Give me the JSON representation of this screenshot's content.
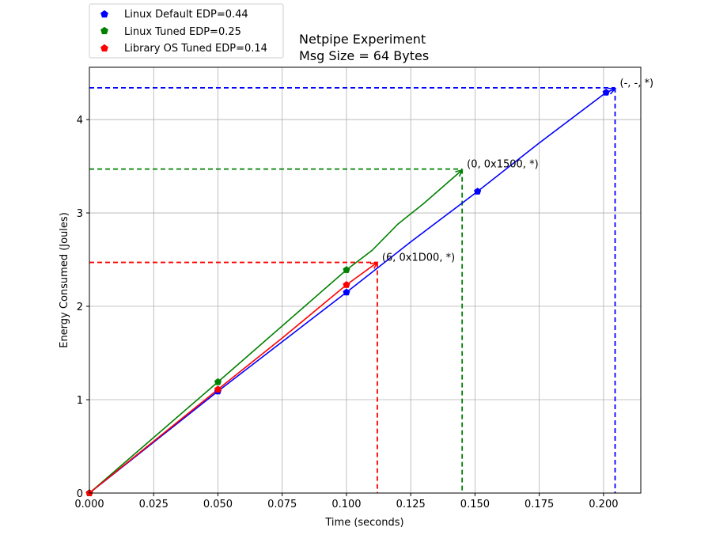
{
  "chart_data": {
    "type": "line",
    "title_lines": [
      "Netpipe Experiment",
      "Msg Size = 64 Bytes"
    ],
    "xlabel": "Time (seconds)",
    "ylabel": "Energy Consumed (Joules)",
    "xlim": [
      0.0,
      0.2145
    ],
    "ylim": [
      0,
      4.56
    ],
    "xticks": [
      0.0,
      0.025,
      0.05,
      0.075,
      0.1,
      0.125,
      0.15,
      0.175,
      0.2
    ],
    "xtick_labels": [
      "0.000",
      "0.025",
      "0.050",
      "0.075",
      "0.100",
      "0.125",
      "0.150",
      "0.175",
      "0.200"
    ],
    "yticks": [
      0,
      1,
      2,
      3,
      4
    ],
    "ytick_labels": [
      "0",
      "1",
      "2",
      "3",
      "4"
    ],
    "grid": true,
    "legend_position": "top-left, above the plot",
    "series": [
      {
        "name": "Linux Default EDP=0.44",
        "color": "#0000ff",
        "marker": "pentagon",
        "line": [
          [
            0.0,
            0.0
          ],
          [
            0.05,
            1.09
          ],
          [
            0.1,
            2.15
          ],
          [
            0.125,
            2.69
          ],
          [
            0.138,
            2.96
          ],
          [
            0.151,
            3.23
          ],
          [
            0.175,
            3.75
          ],
          [
            0.201,
            4.29
          ],
          [
            0.2045,
            4.33
          ]
        ],
        "markers": [
          [
            0.0,
            0.0
          ],
          [
            0.05,
            1.09
          ],
          [
            0.1,
            2.15
          ],
          [
            0.151,
            3.23
          ],
          [
            0.201,
            4.29
          ]
        ],
        "end": [
          0.2045,
          4.34
        ],
        "annotation": "(-, -, *)"
      },
      {
        "name": "Linux Tuned EDP=0.25",
        "color": "#008000",
        "marker": "pentagon",
        "line": [
          [
            0.0,
            0.0
          ],
          [
            0.05,
            1.19
          ],
          [
            0.1,
            2.39
          ],
          [
            0.11,
            2.6
          ],
          [
            0.12,
            2.88
          ],
          [
            0.13,
            3.1
          ],
          [
            0.145,
            3.46
          ]
        ],
        "markers": [
          [
            0.0,
            0.0
          ],
          [
            0.05,
            1.19
          ],
          [
            0.1,
            2.39
          ]
        ],
        "end": [
          0.145,
          3.47
        ],
        "annotation": "(0, 0x1500, *)"
      },
      {
        "name": "Library OS Tuned EDP=0.14",
        "color": "#ff0000",
        "marker": "pentagon",
        "line": [
          [
            0.0,
            0.0
          ],
          [
            0.05,
            1.11
          ],
          [
            0.075,
            1.66
          ],
          [
            0.1,
            2.23
          ],
          [
            0.105,
            2.33
          ],
          [
            0.112,
            2.47
          ]
        ],
        "markers": [
          [
            0.0,
            0.0
          ],
          [
            0.05,
            1.11
          ],
          [
            0.1,
            2.23
          ]
        ],
        "end": [
          0.112,
          2.47
        ],
        "annotation": "(6, 0x1D00, *)"
      }
    ]
  }
}
